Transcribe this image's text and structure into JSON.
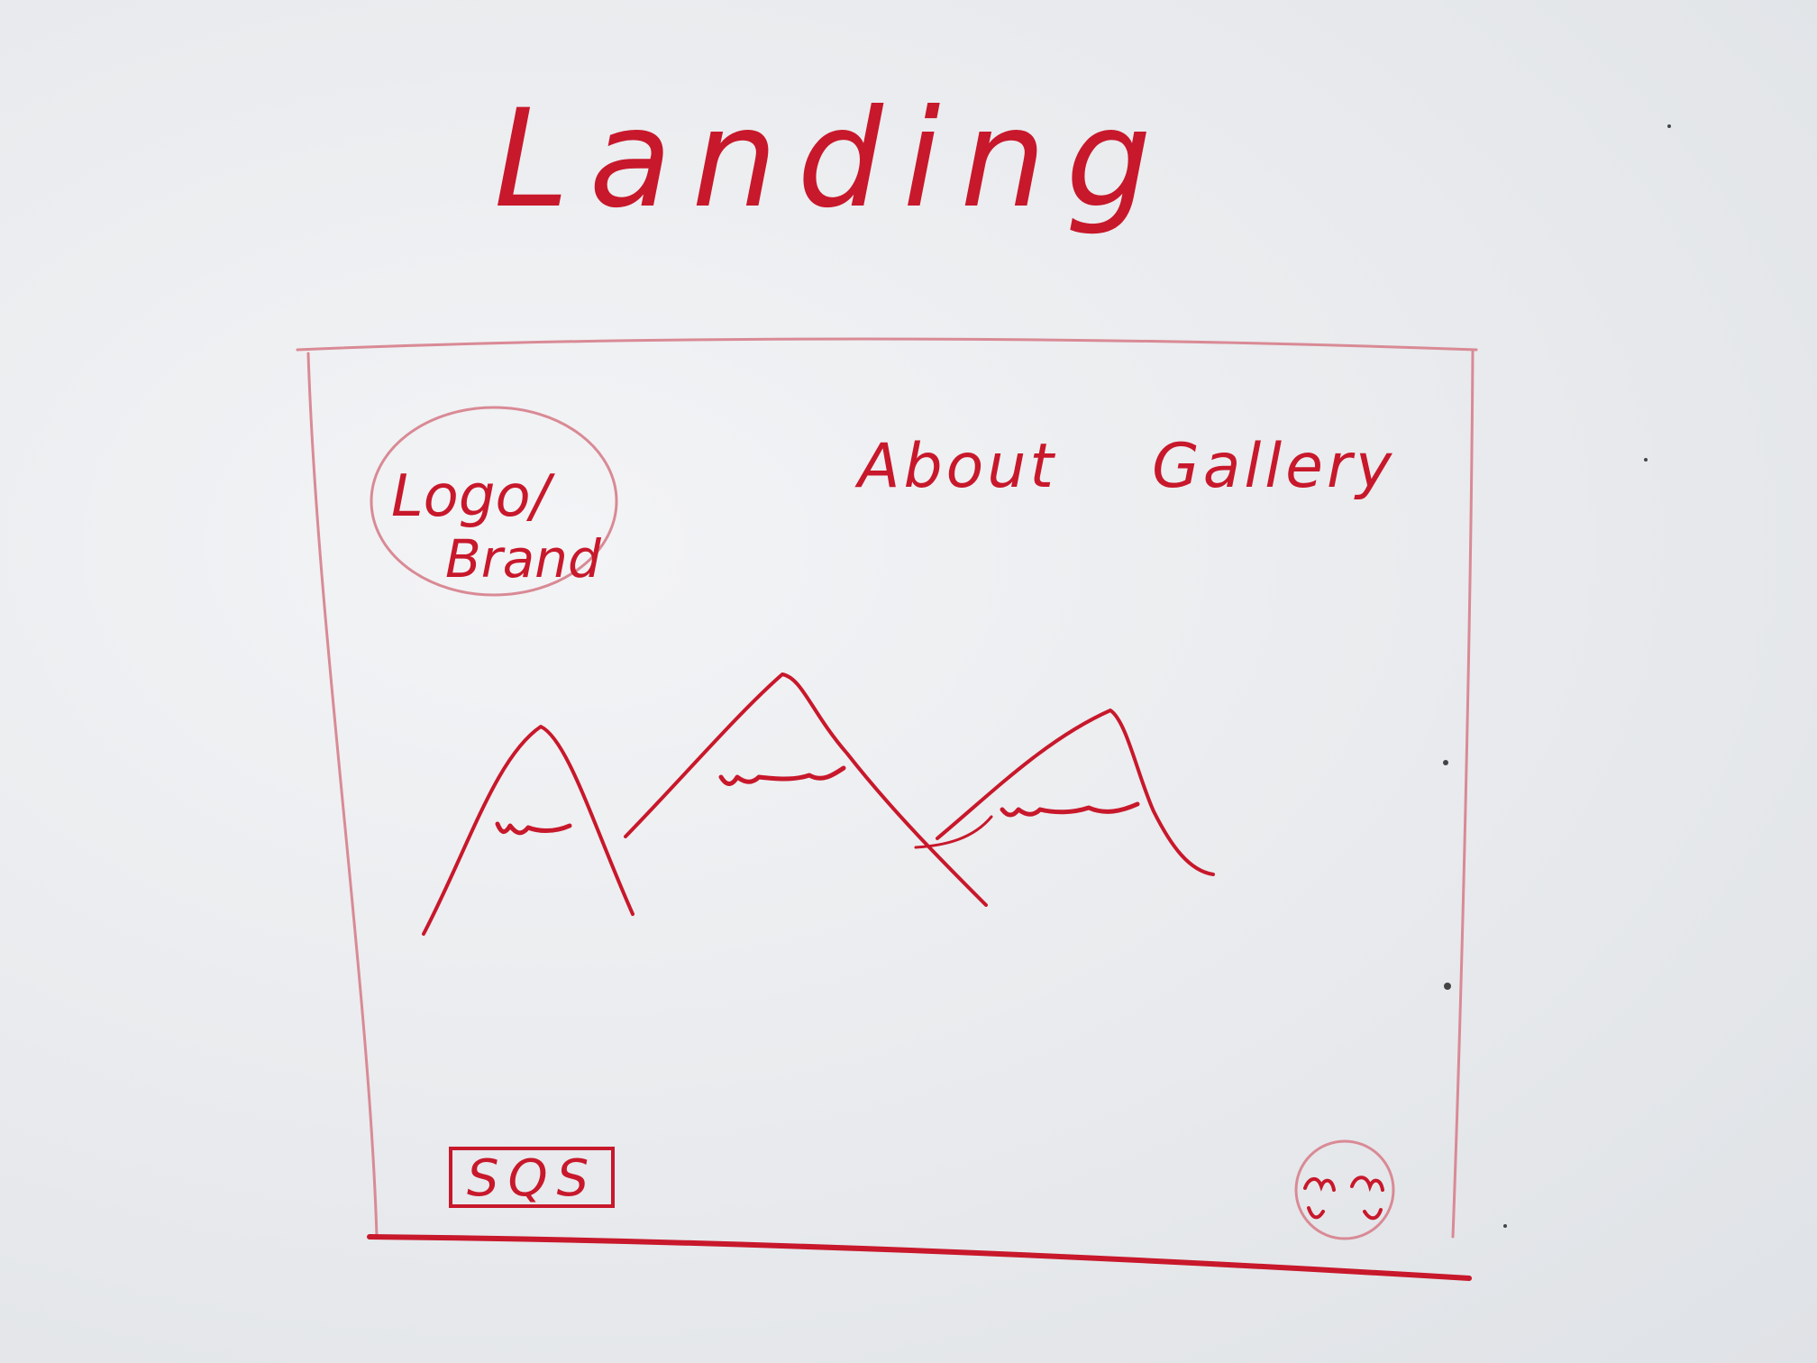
{
  "title": "Landing",
  "logo": {
    "line1": "Logo/",
    "line2": "Brand"
  },
  "nav": {
    "about": "About",
    "gallery": "Gallery"
  },
  "footer": {
    "badge": "SQS"
  },
  "colors": {
    "marker": "#c8182b",
    "marker_light": "#d98a95",
    "board": "#e9ebee"
  },
  "icons": {
    "hero": "mountains-sketch",
    "avatar": "face-sketch"
  }
}
